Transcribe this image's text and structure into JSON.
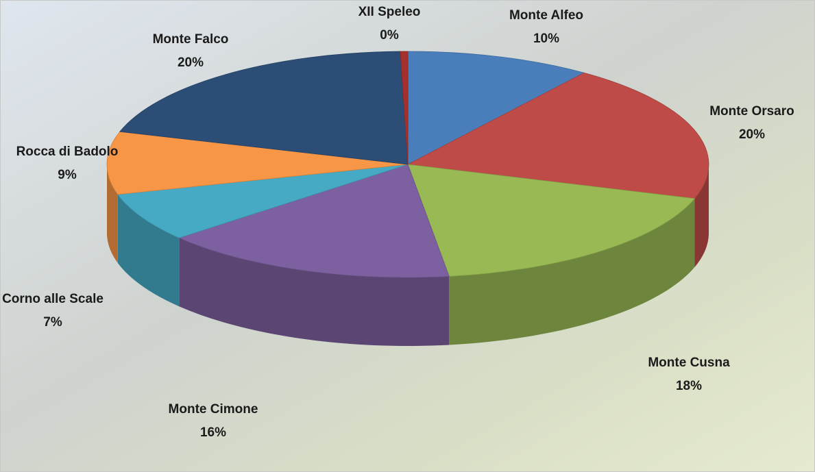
{
  "chart_data": {
    "type": "pie3d",
    "categories": [
      "Monte Alfeo",
      "Monte Orsaro",
      "Monte Cusna",
      "Monte Cimone",
      "Corno alle Scale",
      "Rocca di Badolo",
      "Monte Falco",
      "XII Speleo"
    ],
    "values": [
      10,
      20,
      18,
      16,
      7,
      9,
      20,
      0.4
    ],
    "value_labels": [
      "10%",
      "20%",
      "18%",
      "16%",
      "7%",
      "9%",
      "20%",
      "0%"
    ],
    "colors": [
      "#4a7ebb",
      "#be4b48",
      "#98b954",
      "#7d60a0",
      "#46aac5",
      "#f79646",
      "#2c4d75",
      "#a5302e"
    ]
  }
}
